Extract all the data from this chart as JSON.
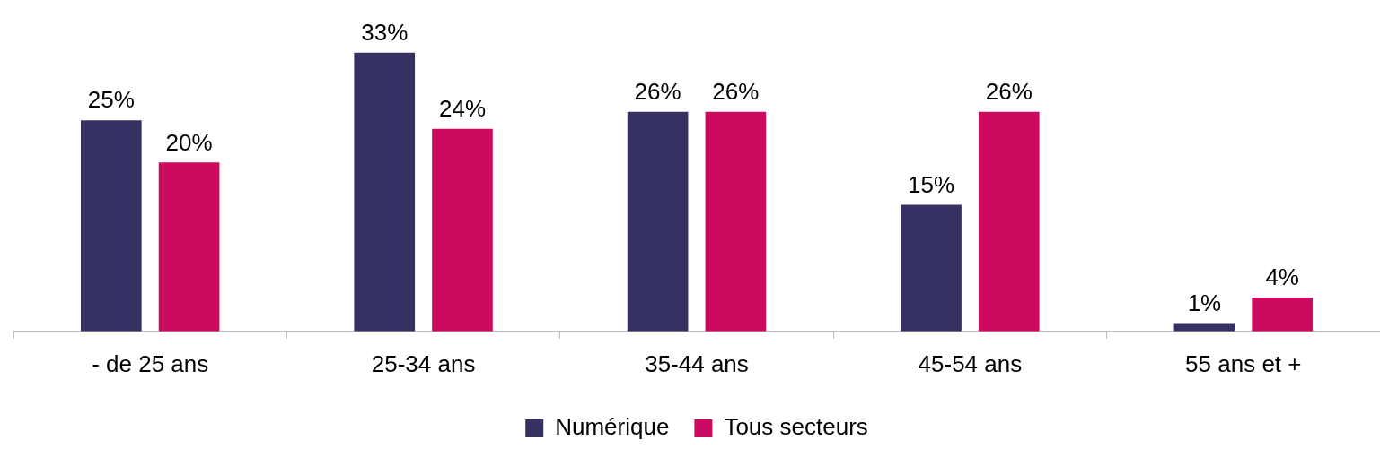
{
  "chart_data": {
    "type": "bar",
    "categories": [
      "- de 25 ans",
      "25-34 ans",
      "35-44 ans",
      "45-54 ans",
      "55 ans et +"
    ],
    "series": [
      {
        "name": "Numérique",
        "color": "#353162",
        "values": [
          25,
          33,
          26,
          15,
          1
        ],
        "value_labels": [
          "25%",
          "33%",
          "26%",
          "15%",
          "1%"
        ]
      },
      {
        "name": "Tous secteurs",
        "color": "#cc0a5e",
        "values": [
          20,
          24,
          26,
          26,
          4
        ],
        "value_labels": [
          "20%",
          "24%",
          "26%",
          "26%",
          "4%"
        ]
      }
    ],
    "legend": "bottom",
    "grid": false
  }
}
